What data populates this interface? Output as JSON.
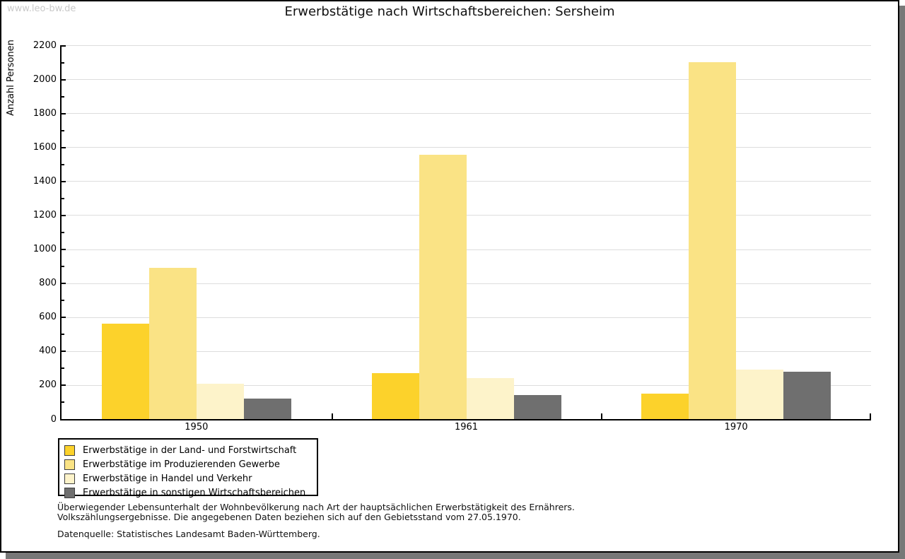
{
  "watermark": "www.leo-bw.de",
  "title": "Erwerbstätige nach Wirtschaftsbereichen: Sersheim",
  "chart_data": {
    "type": "bar",
    "title": "Erwerbstätige nach Wirtschaftsbereichen: Sersheim",
    "xlabel": "",
    "ylabel": "Anzahl Personen",
    "categories": [
      "1950",
      "1961",
      "1970"
    ],
    "series": [
      {
        "name": "Erwerbstätige in der Land- und Forstwirtschaft",
        "color": "#FCD22B",
        "values": [
          560,
          270,
          150
        ]
      },
      {
        "name": "Erwerbstätige im Produzierenden Gewerbe",
        "color": "#FAE385",
        "values": [
          890,
          1555,
          2100
        ]
      },
      {
        "name": "Erwerbstätige in Handel und Verkehr",
        "color": "#FDF3CA",
        "values": [
          210,
          240,
          290
        ]
      },
      {
        "name": "Erwerbstätige in sonstigen Wirtschaftsbereichen",
        "color": "#6F6F6F",
        "values": [
          120,
          140,
          280
        ]
      }
    ],
    "ylim": [
      0,
      2200
    ],
    "ytick_step": 200,
    "ytick_minor_step": 100,
    "grid": true,
    "gridline_color": "#dddddd",
    "legend_position": "bottom-left"
  },
  "footnote": {
    "line1": "Überwiegender Lebensunterhalt der Wohnbevölkerung nach Art der hauptsächlichen Erwerbstätigkeit des Ernährers.",
    "line2": "Volkszählungsergebnisse. Die angegebenen Daten beziehen sich auf den Gebietsstand vom 27.05.1970."
  },
  "source_line": "Datenquelle: Statistisches Landesamt Baden-Württemberg."
}
